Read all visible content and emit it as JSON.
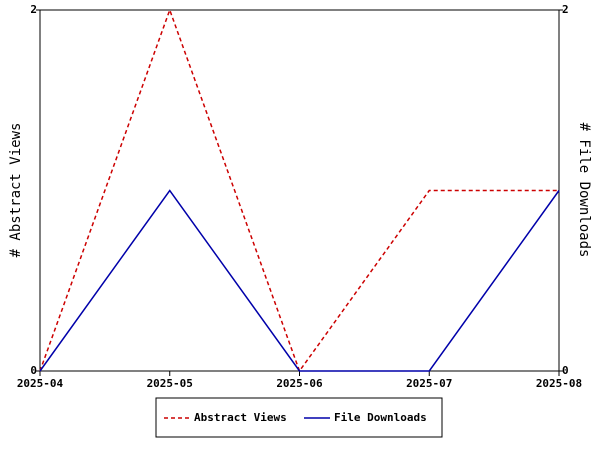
{
  "chart_data": {
    "type": "line",
    "categories": [
      "2025-04",
      "2025-05",
      "2025-06",
      "2025-07",
      "2025-08"
    ],
    "y_label": "# Abstract Views",
    "y2_label": "# File Downloads",
    "ylim": [
      0,
      2
    ],
    "yticks": [
      0,
      2
    ],
    "y2lim": [
      0,
      2
    ],
    "y2ticks": [
      0,
      2
    ],
    "series": [
      {
        "name": "Abstract Views",
        "color": "#cc0000",
        "dash": true,
        "values": [
          0,
          2,
          0,
          1,
          1
        ]
      },
      {
        "name": "File Downloads",
        "color": "#0000aa",
        "dash": false,
        "axis": "y2",
        "values": [
          0,
          1,
          0,
          0,
          1
        ]
      }
    ]
  }
}
